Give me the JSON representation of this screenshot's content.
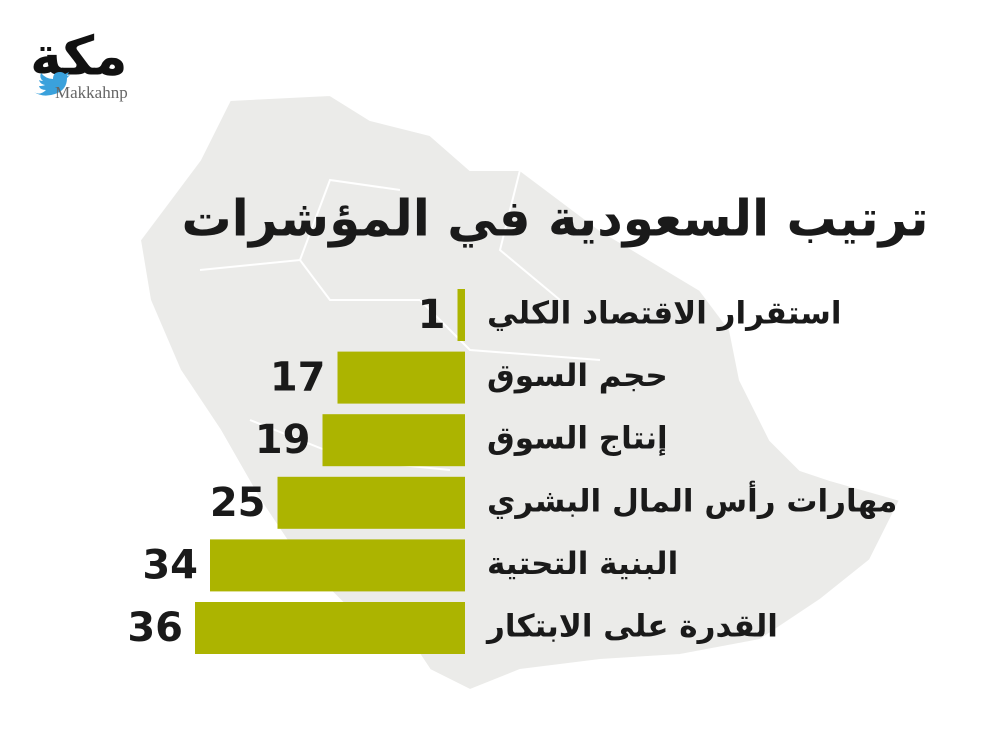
{
  "brand": {
    "logo": "مكة",
    "handle": "Makkahnp"
  },
  "chart_data": {
    "type": "bar",
    "orientation": "horizontal",
    "title": "ترتيب السعودية في المؤشرات",
    "categories": [
      "استقرار الاقتصاد الكلي",
      "حجم السوق",
      "إنتاج السوق",
      "مهارات رأس المال البشري",
      "البنية التحتية",
      "القدرة على الابتكار"
    ],
    "values": [
      1,
      17,
      19,
      25,
      34,
      36
    ],
    "color": "#acb400"
  }
}
